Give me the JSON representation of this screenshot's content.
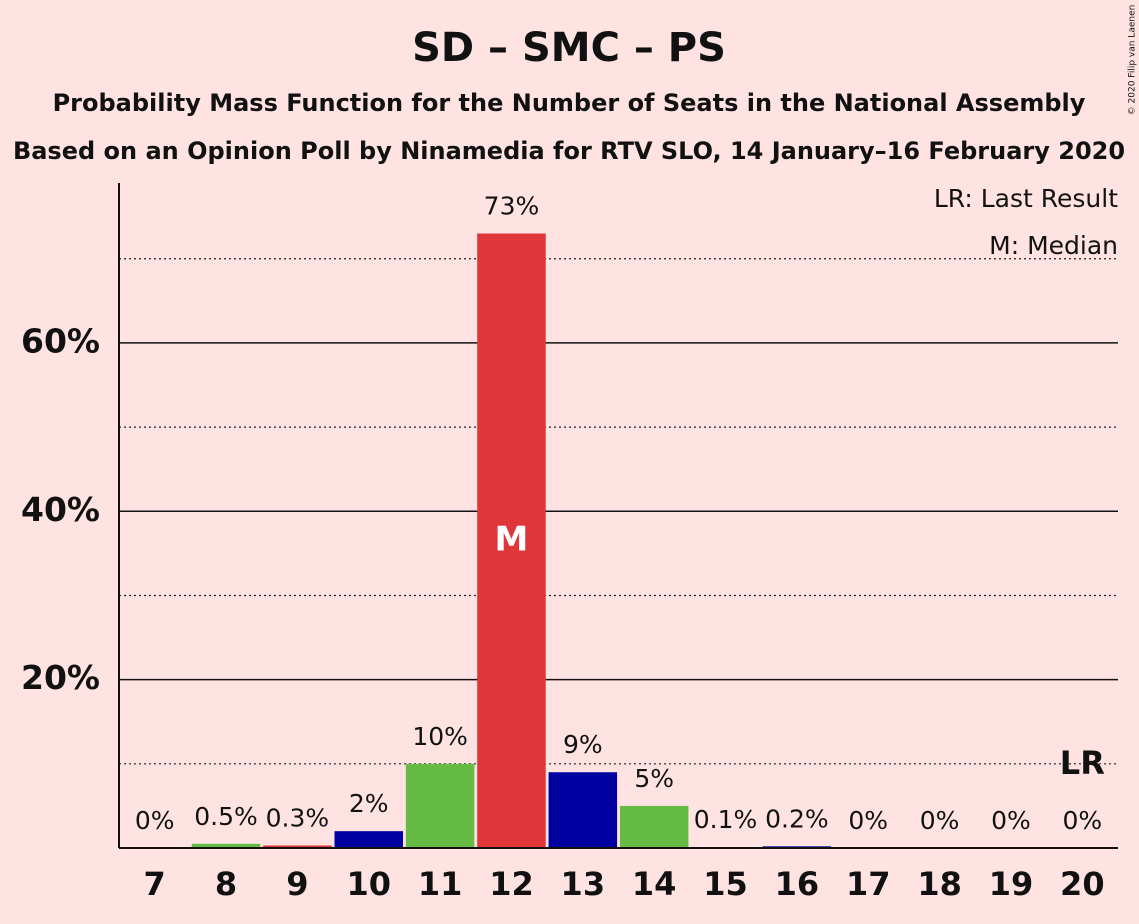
{
  "chart_data": {
    "type": "bar",
    "title": "SD – SMC – PS",
    "subtitle": "Probability Mass Function for the Number of Seats in the National Assembly",
    "subtitle2": "Based on an Opinion Poll by Ninamedia for RTV SLO, 14 January–16 February 2020",
    "copyright": "© 2020 Filip van Laenen",
    "legend": [
      "LR: Last Result",
      "M: Median"
    ],
    "categories": [
      "7",
      "8",
      "9",
      "10",
      "11",
      "12",
      "13",
      "14",
      "15",
      "16",
      "17",
      "18",
      "19",
      "20"
    ],
    "values": [
      0,
      0.5,
      0.3,
      2,
      10,
      73,
      9,
      5,
      0.1,
      0.2,
      0,
      0,
      0,
      0
    ],
    "value_labels": [
      "0%",
      "0.5%",
      "0.3%",
      "2%",
      "10%",
      "73%",
      "9%",
      "5%",
      "0.1%",
      "0.2%",
      "0%",
      "0%",
      "0%",
      "0%"
    ],
    "colors": [
      "#0000a0",
      "#66bb44",
      "#e0363a",
      "#0000a0",
      "#66bb44",
      "#e0363a",
      "#0000a0",
      "#66bb44",
      "#e0363a",
      "#0000a0",
      "#66bb44",
      "#e0363a",
      "#0000a0",
      "#66bb44"
    ],
    "annotations": [
      {
        "category": "12",
        "label": "M"
      },
      {
        "category": "20",
        "label": "LR"
      }
    ],
    "ylim": [
      0,
      79
    ],
    "yticks": [
      {
        "value": 20,
        "label": "20%"
      },
      {
        "value": 40,
        "label": "40%"
      },
      {
        "value": 60,
        "label": "60%"
      }
    ],
    "minor_gridlines": [
      10,
      30,
      50,
      70
    ],
    "grid": true
  }
}
